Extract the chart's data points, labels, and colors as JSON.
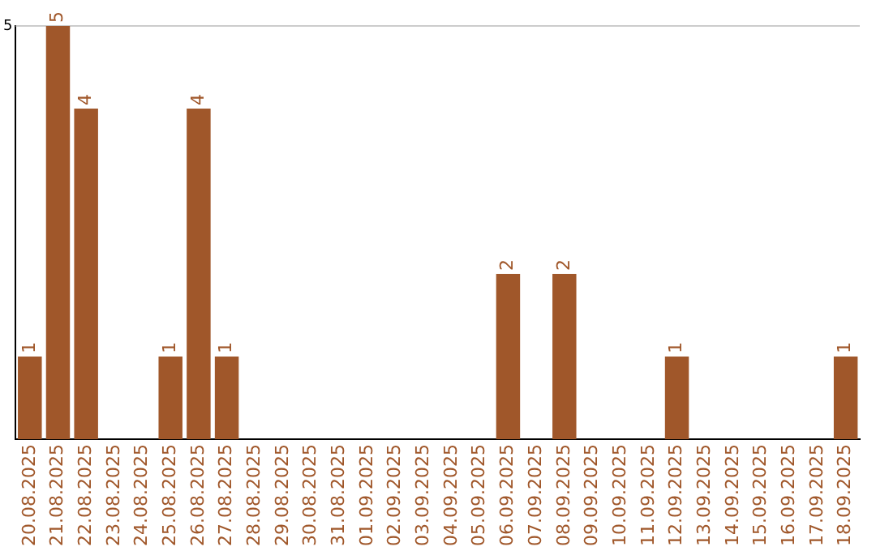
{
  "chart_data": {
    "type": "bar",
    "categories": [
      "20.08.2025",
      "21.08.2025",
      "22.08.2025",
      "23.08.2025",
      "24.08.2025",
      "25.08.2025",
      "26.08.2025",
      "27.08.2025",
      "28.08.2025",
      "29.08.2025",
      "30.08.2025",
      "31.08.2025",
      "01.09.2025",
      "02.09.2025",
      "03.09.2025",
      "04.09.2025",
      "05.09.2025",
      "06.09.2025",
      "07.09.2025",
      "08.09.2025",
      "09.09.2025",
      "10.09.2025",
      "11.09.2025",
      "12.09.2025",
      "13.09.2025",
      "14.09.2025",
      "15.09.2025",
      "16.09.2025",
      "17.09.2025",
      "18.09.2025"
    ],
    "values": [
      1,
      5,
      4,
      0,
      0,
      1,
      4,
      1,
      0,
      0,
      0,
      0,
      0,
      0,
      0,
      0,
      0,
      2,
      0,
      2,
      0,
      0,
      0,
      1,
      0,
      0,
      0,
      0,
      0,
      1
    ],
    "value_labels": [
      "1",
      "5",
      "4",
      null,
      null,
      "1",
      "4",
      "1",
      null,
      null,
      null,
      null,
      null,
      null,
      null,
      null,
      null,
      "2",
      null,
      "2",
      null,
      null,
      null,
      "1",
      null,
      null,
      null,
      null,
      null,
      "1"
    ],
    "color": "#a0572a",
    "ylim": [
      0,
      5
    ],
    "yticks": [
      5
    ],
    "ref_lines": [
      {
        "axis": "y",
        "value": 5,
        "color": "#cccccc"
      }
    ],
    "legend": false
  }
}
